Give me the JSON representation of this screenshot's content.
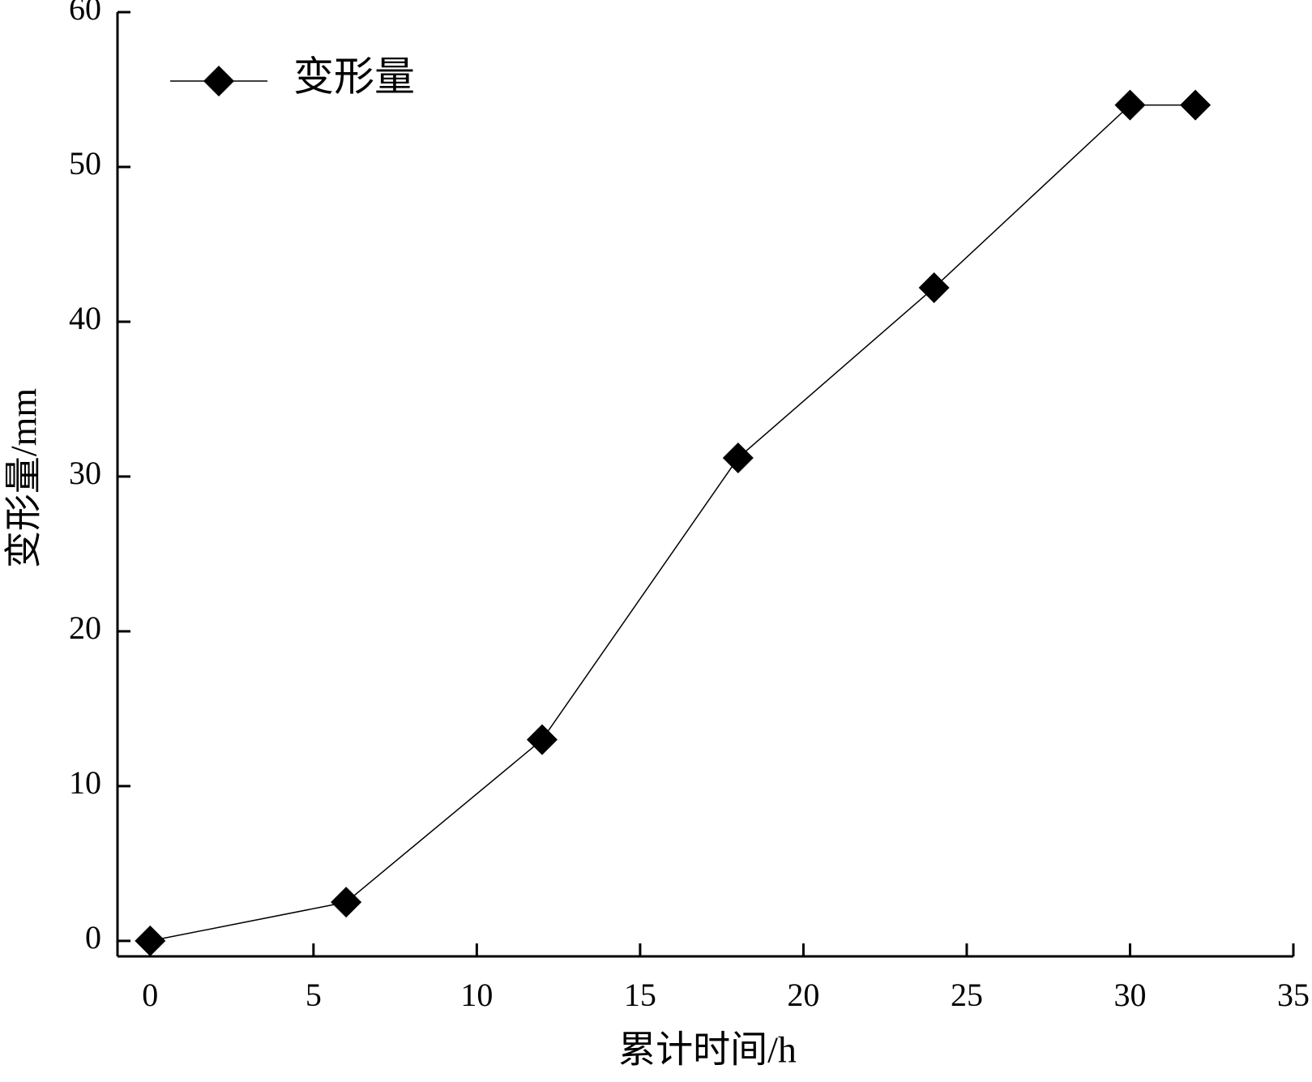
{
  "chart_data": {
    "type": "line",
    "x_label": "累计时间/h",
    "y_label": "变形量/mm",
    "x": [
      0,
      6,
      12,
      18,
      24,
      30,
      32
    ],
    "series": [
      {
        "name": "变形量",
        "color": "#000000",
        "values": [
          0,
          2.5,
          13,
          31.2,
          42.2,
          54,
          54
        ]
      }
    ],
    "xlim": [
      -1,
      35
    ],
    "xticks": [
      0,
      5,
      10,
      15,
      20,
      25,
      30,
      35
    ],
    "ylim": [
      -1,
      60
    ],
    "yticks": [
      0,
      10,
      20,
      30,
      40,
      50,
      60
    ],
    "grid": false,
    "legend": "upper left",
    "marker": "diamond"
  }
}
